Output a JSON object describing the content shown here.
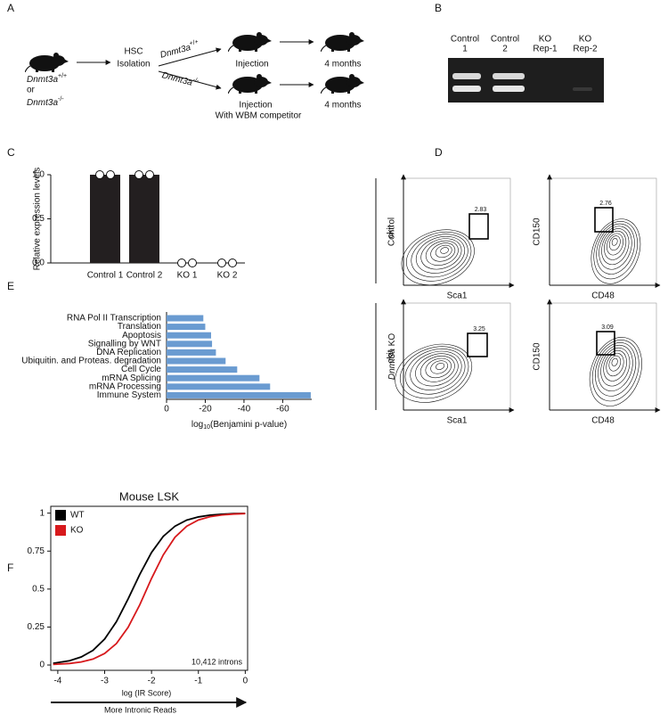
{
  "panel_a": {
    "label": "A",
    "donor": [
      {
        "gene": "Dnmt3a",
        "superscript": "+/+"
      },
      {
        "gene": "Dnmt3a",
        "superscript": "-/-"
      }
    ],
    "or": "or",
    "isolation": [
      "HSC",
      "Isolation"
    ],
    "arms": [
      {
        "gene": "Dnmt3a",
        "superscript": "+/+",
        "injection": [
          "Injection"
        ],
        "duration": "4 months"
      },
      {
        "gene": "Dnmt3a",
        "superscript": "-/-",
        "injection": [
          "Injection",
          "With WBM competitor"
        ],
        "duration": "4 months"
      }
    ]
  },
  "panel_b": {
    "label": "B",
    "lanes": [
      [
        "Control",
        "1"
      ],
      [
        "Control",
        "2"
      ],
      [
        "KO",
        "Rep-1"
      ],
      [
        "KO",
        "Rep-2"
      ]
    ]
  },
  "panel_d": {
    "label": "D",
    "rows": [
      {
        "label": "Control"
      },
      {
        "gene": "Dnmt3a",
        "label": "KO"
      }
    ],
    "plots": [
      {
        "y_label": "ckit",
        "x_label": "Sca1",
        "gate": 2.83
      },
      {
        "y_label": "CD150",
        "x_label": "CD48",
        "gate": 2.76
      },
      {
        "y_label": "ckit",
        "x_label": "Sca1",
        "gate": 3.25
      },
      {
        "y_label": "CD150",
        "x_label": "CD48",
        "gate": 3.09
      }
    ]
  },
  "chart_data": [
    {
      "panel": "C",
      "type": "bar",
      "categories": [
        "Control 1",
        "Control 2",
        "KO 1",
        "KO 2"
      ],
      "values": [
        1,
        1,
        0,
        0
      ],
      "replicates": [
        [
          1,
          1
        ],
        [
          1,
          1
        ],
        [
          0,
          0
        ],
        [
          0,
          0
        ]
      ],
      "color": "#231f20",
      "ylabel": "Relative expression levels",
      "ylim": [
        0,
        1
      ],
      "yticks": [
        {
          "value": 0,
          "label": "0.0"
        },
        0.5,
        {
          "value": 1,
          "label": "1.0"
        }
      ]
    },
    {
      "panel": "E",
      "type": "barh",
      "categories": [
        "RNA Pol II Transcription",
        "Translation",
        "Apoptosis",
        "Signalling by WNT",
        "DNA Replication",
        "Ubiquitin. and Proteas. degradation",
        "Cell Cycle",
        "mRNA Splicing",
        "mRNA Processing",
        "Immune System"
      ],
      "values": [
        -19,
        -20,
        -23,
        -23.5,
        -25.5,
        -30.5,
        -36.5,
        -48,
        -53.5,
        -74.5
      ],
      "color": "#6a9bd1",
      "xlabel": {
        "prefix": "log",
        "subscript": "10",
        "suffix": "(Benjamini p-value)"
      },
      "xlim": [
        0,
        -75
      ],
      "xticks": [
        0,
        -20,
        -40,
        -60
      ]
    },
    {
      "panel": "F",
      "type": "line",
      "title": "Mouse LSK",
      "x": [
        -4.1,
        -3.75,
        -3.5,
        -3.25,
        -3,
        -2.75,
        -2.5,
        -2.25,
        -2,
        -1.75,
        -1.5,
        -1.25,
        -1,
        -0.75,
        -0.5,
        -0.25,
        0
      ],
      "series": [
        {
          "name": "WT",
          "color": "#000000",
          "values": [
            0.011,
            0.028,
            0.053,
            0.096,
            0.171,
            0.285,
            0.435,
            0.597,
            0.741,
            0.847,
            0.914,
            0.954,
            0.975,
            0.987,
            0.993,
            0.997,
            0.998
          ]
        },
        {
          "name": "KO",
          "color": "#d7191c",
          "values": [
            0.004,
            0.01,
            0.02,
            0.039,
            0.076,
            0.141,
            0.248,
            0.397,
            0.57,
            0.725,
            0.841,
            0.914,
            0.955,
            0.977,
            0.988,
            0.994,
            0.997
          ]
        }
      ],
      "xlabel": "log (IR Score)",
      "annotation": "10,412 introns",
      "direction_label": "More Intronic Reads",
      "xlim": [
        -4.15,
        0.05
      ],
      "ylim": [
        -0.035,
        1.045
      ],
      "xticks": [
        -4,
        -3,
        -2,
        -1,
        0
      ],
      "yticks": [
        0,
        0.25,
        0.5,
        0.75,
        1
      ],
      "legend": "upper left"
    }
  ]
}
